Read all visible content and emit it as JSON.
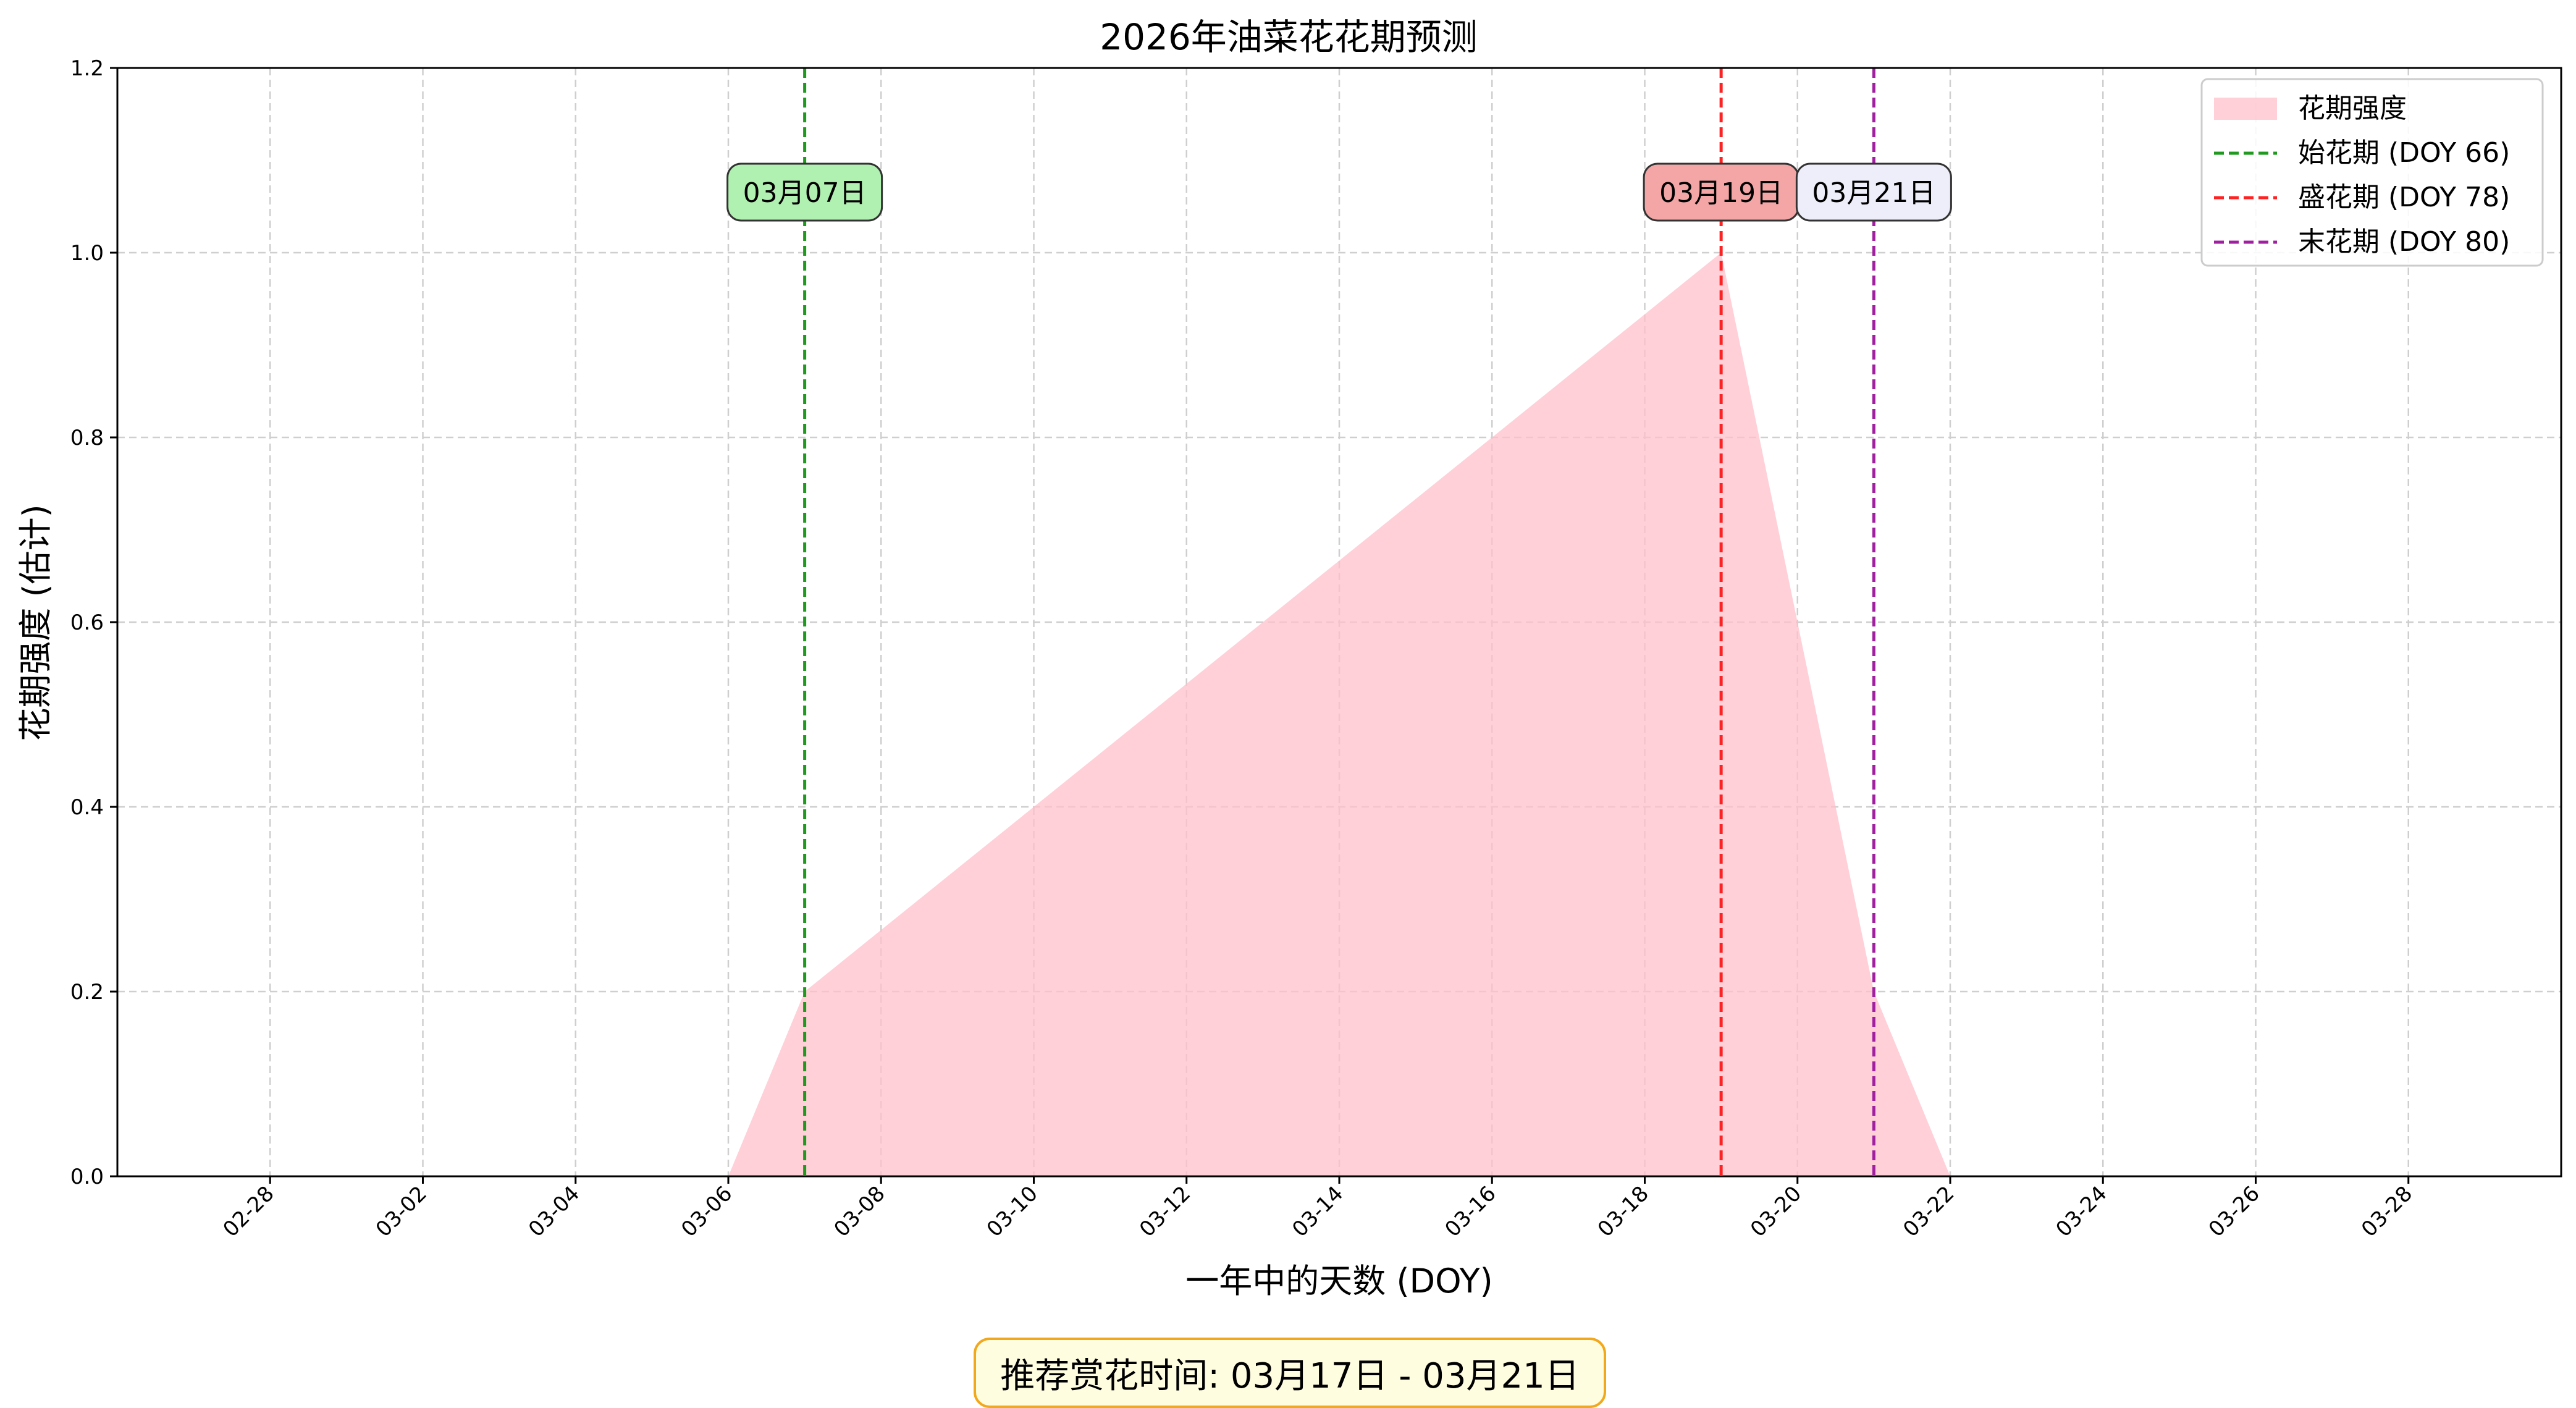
{
  "chart_data": {
    "type": "area",
    "title": "2026年油菜花花期预测",
    "xlabel": "一年中的天数 (DOY)",
    "ylabel": "花期强度 (估计)",
    "ylim": [
      0,
      1.2
    ],
    "yticks": [
      "0.0",
      "0.2",
      "0.4",
      "0.6",
      "0.8",
      "1.0",
      "1.2"
    ],
    "xlim": [
      "02-26",
      "03-30"
    ],
    "xticks": [
      "02-28",
      "03-02",
      "03-04",
      "03-06",
      "03-08",
      "03-10",
      "03-12",
      "03-14",
      "03-16",
      "03-18",
      "03-20",
      "03-22",
      "03-24",
      "03-26",
      "03-28"
    ],
    "grid": true,
    "legend_position": "top-right",
    "series": [
      {
        "name": "花期强度",
        "kind": "area",
        "color": "#ffc0cb",
        "x": [
          "03-06",
          "03-07",
          "03-19",
          "03-20",
          "03-21",
          "03-22"
        ],
        "y": [
          0.0,
          0.2,
          1.0,
          0.6,
          0.2,
          0.0
        ]
      }
    ],
    "markers": [
      {
        "legend": "始花期 (DOY 66)",
        "date": "03-07",
        "label": "03月07日",
        "color": "#1f9a1f",
        "box_color": "#b0f0b0"
      },
      {
        "legend": "盛花期 (DOY 78)",
        "date": "03-19",
        "label": "03月19日",
        "color": "#ff2222",
        "box_color": "#f4a6a6"
      },
      {
        "legend": "末花期 (DOY 80)",
        "date": "03-21",
        "label": "03月21日",
        "color": "#a020a0",
        "box_color": "#eeeefa"
      }
    ]
  },
  "recommendation": "推荐赏花时间: 03月17日 - 03月21日"
}
